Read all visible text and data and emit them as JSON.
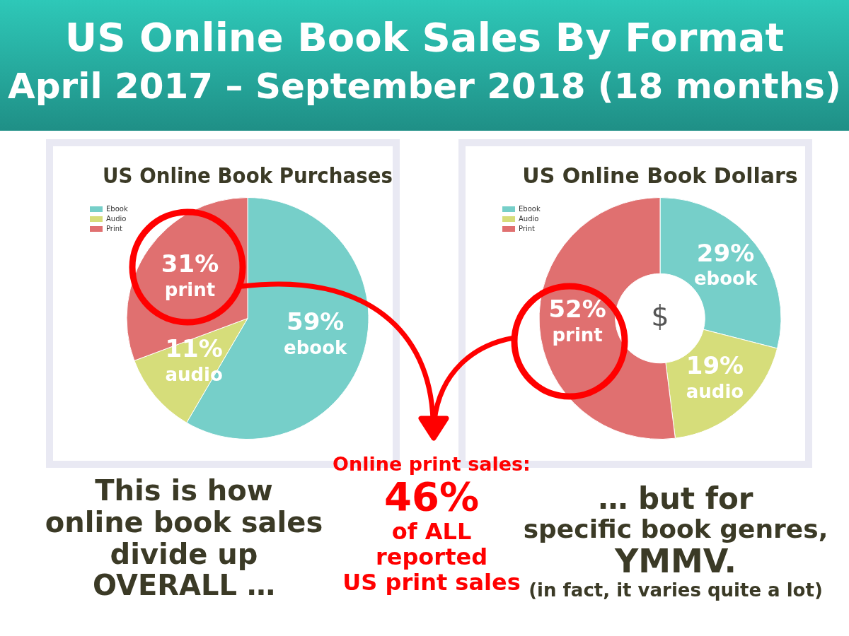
{
  "chart_data": [
    {
      "type": "other",
      "title": "US Online Book Sales By Format",
      "subtitle": "April 2017 – September 2018 (18 months)",
      "annotations": [
        "This is how\nonline book sales\ndivide up\nOVERALL …",
        "Online print sales:\n46%\nof ALL\nreported\nUS print sales",
        "… but for\nspecific book genres,\nYMMV.\n(in fact, it varies quite a lot)"
      ]
    },
    {
      "type": "pie",
      "title": "US Online Book Purchases",
      "categories": [
        "Ebook",
        "Audio",
        "Print"
      ],
      "values": [
        59,
        11,
        31
      ],
      "colors": [
        "#76cfc9",
        "#d6dd7a",
        "#e07070"
      ],
      "value_labels": [
        "59%\nebook",
        "11%\naudio",
        "31%\nprint"
      ],
      "legend": "top left"
    },
    {
      "type": "donut",
      "title": "US Online Book Dollars",
      "categories": [
        "Ebook",
        "Audio",
        "Print"
      ],
      "values": [
        29,
        19,
        52
      ],
      "colors": [
        "#76cfc9",
        "#d6dd7a",
        "#e07070"
      ],
      "value_labels": [
        "29%\nebook",
        "19%\naudio",
        "52%\nprint"
      ],
      "legend": "top left",
      "annotations": [
        "$"
      ]
    }
  ]
}
